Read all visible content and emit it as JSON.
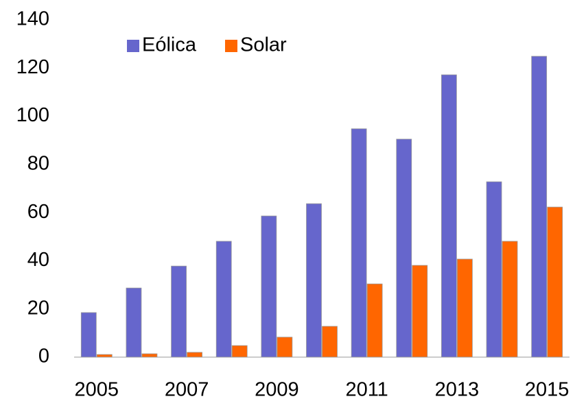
{
  "chart_data": {
    "type": "bar",
    "categories": [
      "2005",
      null,
      "2007",
      null,
      "2009",
      null,
      "2011",
      null,
      "2013",
      null,
      "2015"
    ],
    "series": [
      {
        "name": "Eólica",
        "color": "#6666cc",
        "values": [
          18.5,
          28.7,
          37.8,
          48.1,
          58.6,
          63.7,
          94.8,
          90.5,
          117.2,
          72.8,
          124.9
        ]
      },
      {
        "name": "Solar",
        "color": "#ff6600",
        "values": [
          1.1,
          1.4,
          2,
          4.8,
          8.3,
          12.8,
          30.4,
          38.1,
          40.7,
          48.1,
          62.3
        ]
      }
    ],
    "ylim": [
      0,
      140
    ],
    "yticks": [
      0,
      20,
      40,
      60,
      80,
      100,
      120,
      140
    ],
    "grid": false,
    "legend": "upper left"
  }
}
